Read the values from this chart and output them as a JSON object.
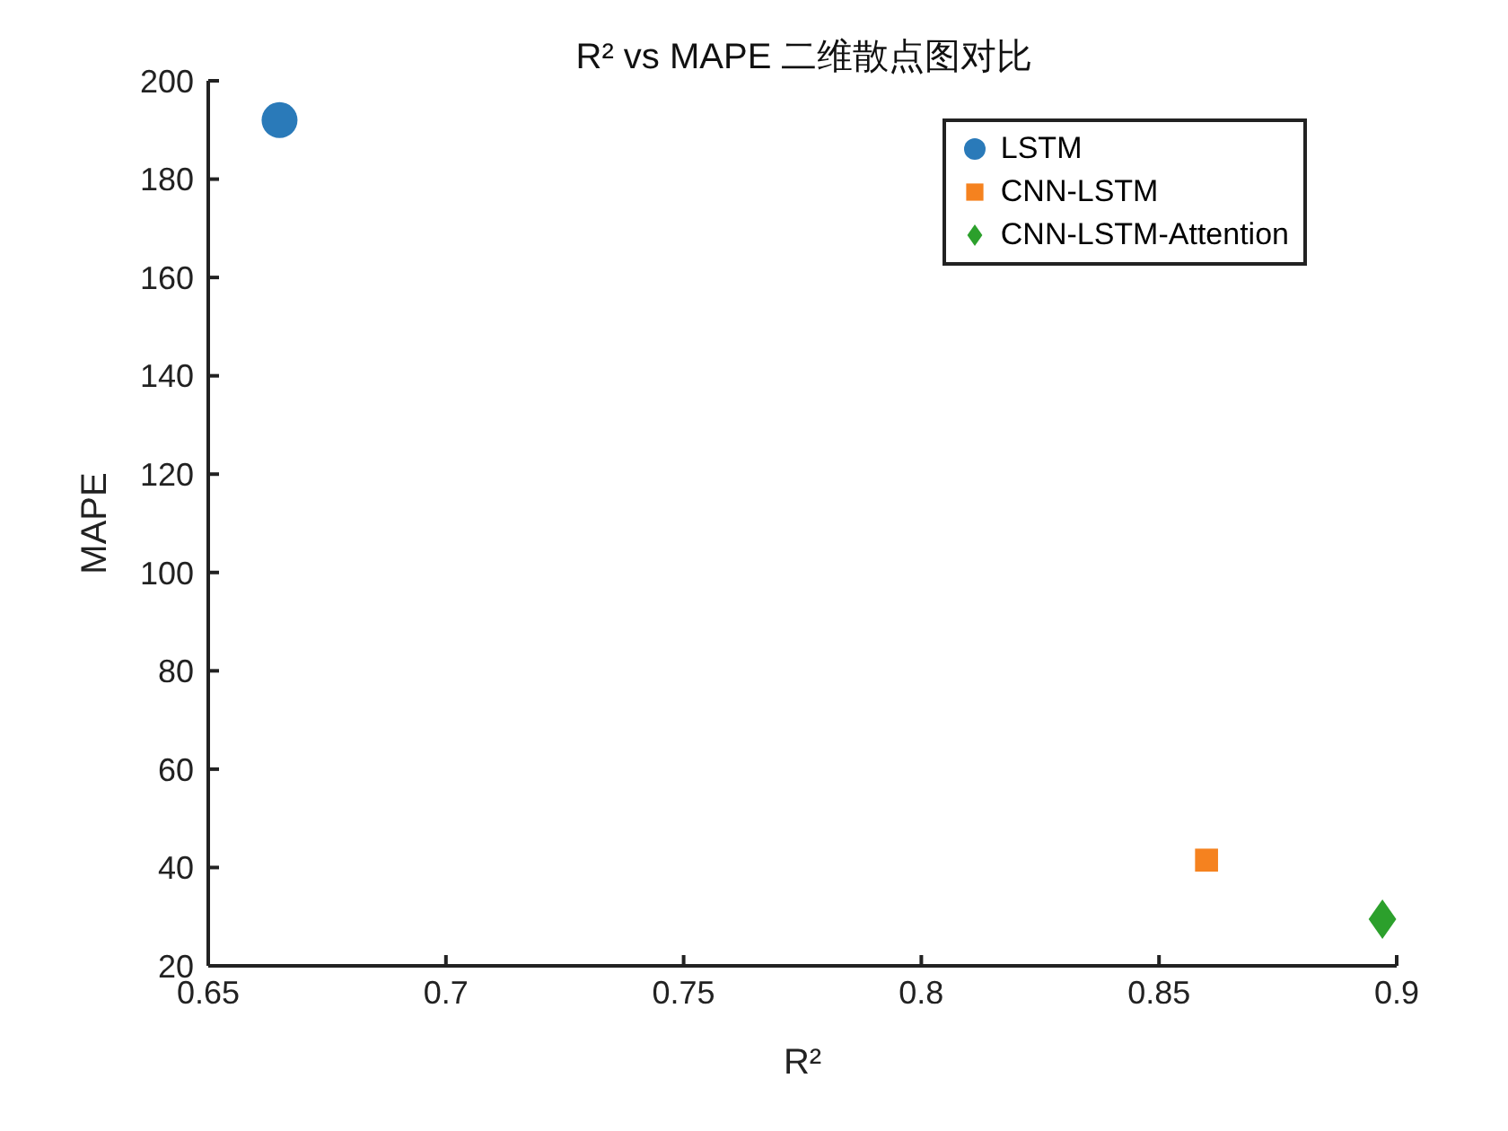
{
  "chart_data": {
    "type": "scatter",
    "title": "R² vs MAPE 二维散点图对比",
    "xlabel": "R²",
    "ylabel": "MAPE",
    "xlim": [
      0.65,
      0.9
    ],
    "xticks": [
      0.65,
      0.7,
      0.75,
      0.8,
      0.85,
      0.9
    ],
    "ylim": [
      20,
      200
    ],
    "yticks": [
      20,
      40,
      60,
      80,
      100,
      120,
      140,
      160,
      180,
      200
    ],
    "grid": false,
    "legend": "top right",
    "series": [
      {
        "name": "LSTM",
        "color": "#2a7ab9",
        "marker": "circle",
        "x": [
          0.665
        ],
        "values": [
          192
        ]
      },
      {
        "name": "CNN-LSTM",
        "color": "#f5821f",
        "marker": "square",
        "x": [
          0.86
        ],
        "values": [
          41.5
        ]
      },
      {
        "name": "CNN-LSTM-Attention",
        "color": "#2ca02c",
        "marker": "diamond",
        "x": [
          0.897
        ],
        "values": [
          29.5
        ]
      }
    ]
  }
}
